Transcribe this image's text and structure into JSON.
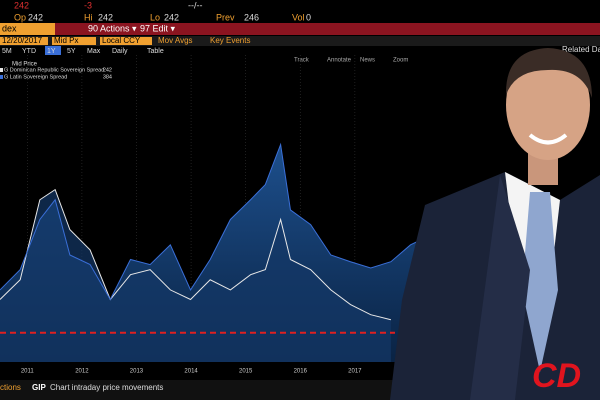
{
  "quote": {
    "last": "242",
    "change": "-3",
    "time": "--/--",
    "fields": [
      {
        "label": "Op",
        "value": "242"
      },
      {
        "label": "Hi",
        "value": "242"
      },
      {
        "label": "Lo",
        "value": "242"
      },
      {
        "label": "Prev",
        "value": "246"
      },
      {
        "label": "Vol",
        "value": "0"
      }
    ]
  },
  "menu": {
    "tab": "dex",
    "actions": "90 Actions ▾",
    "edit": "97 Edit ▾"
  },
  "controls": {
    "date": "12/20/2017",
    "price": "Mid Px",
    "currency": "Local CCY",
    "mov_avgs": "Mov Avgs",
    "key_events": "Key Events"
  },
  "ranges": [
    "5M",
    "YTD",
    "1Y",
    "5Y",
    "Max",
    "Daily",
    "Table"
  ],
  "chart_tools": [
    "Track",
    "Annotate",
    "News",
    "Zoom"
  ],
  "related": "Related Dat",
  "legend_title": "Mid Price",
  "chart_data": {
    "type": "line",
    "x": [
      2010.5,
      2010.87,
      2011.23,
      2011.51,
      2011.78,
      2012.15,
      2012.52,
      2012.89,
      2013.25,
      2013.62,
      2013.99,
      2014.35,
      2014.72,
      2015.09,
      2015.36,
      2015.64,
      2015.82,
      2016.19,
      2016.56,
      2016.92,
      2017.29,
      2017.66,
      2018.02,
      2018.21
    ],
    "series": [
      {
        "name": "G Dominican Republic Sovereign Spread",
        "last_label": "242",
        "color": "#e8e8e8",
        "values": [
          278,
          313,
          455,
          473,
          402,
          366,
          278,
          322,
          331,
          295,
          278,
          313,
          295,
          322,
          331,
          420,
          349,
          331,
          295,
          269,
          251,
          242,
          null,
          null
        ]
      },
      {
        "name": "G Latin Sovereign Spread",
        "last_label": "384",
        "color": "#3a6fd8",
        "values": [
          295,
          331,
          420,
          455,
          357,
          340,
          278,
          349,
          340,
          375,
          295,
          349,
          420,
          455,
          482,
          553,
          437,
          411,
          357,
          345,
          334,
          345,
          375,
          384
        ]
      }
    ],
    "reference_line": 219,
    "xlim": [
      2010.5,
      2019.75
    ],
    "ylim": [
      167,
      712
    ],
    "xticks": [
      2011,
      2012,
      2013,
      2014,
      2015,
      2016,
      2017
    ],
    "grid": true
  },
  "footer": {
    "menu": "ctions",
    "code": "GIP",
    "description": "Chart intraday price movements"
  },
  "logo": "CD"
}
